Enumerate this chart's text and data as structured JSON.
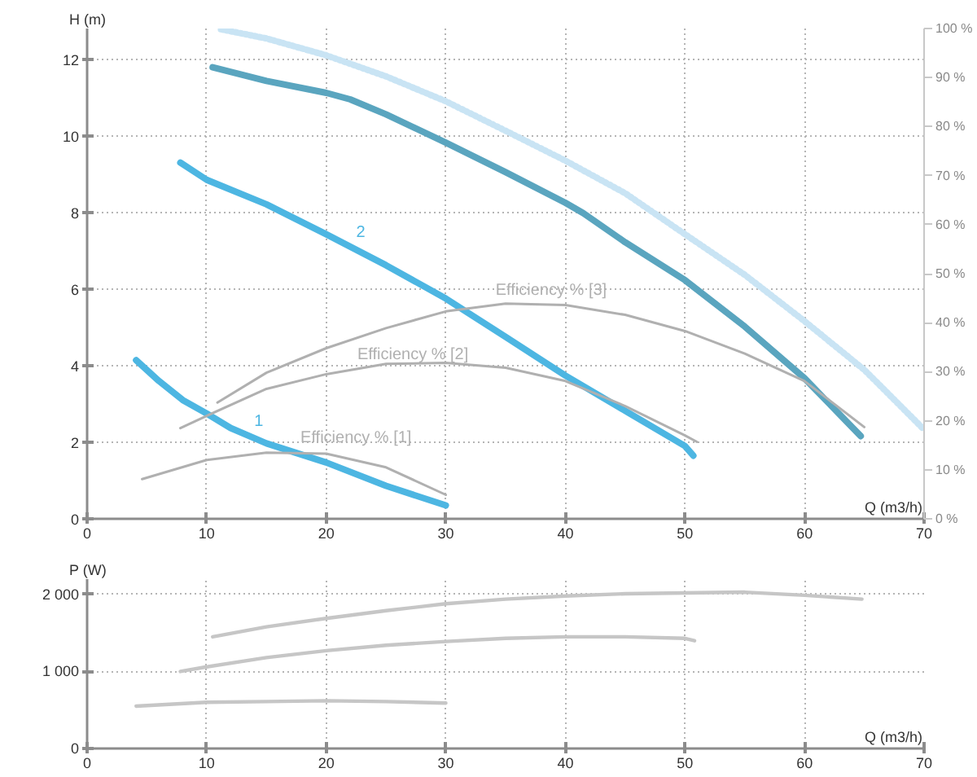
{
  "chart_data": [
    {
      "type": "line",
      "xlabel": "Q (m3/h)",
      "ylabel": "H (m)",
      "xlim": [
        0,
        70
      ],
      "xticks": [
        0,
        10,
        20,
        30,
        40,
        50,
        60,
        70
      ],
      "ylim": [
        0,
        12.8
      ],
      "yticks": [
        0,
        2,
        4,
        6,
        8,
        10,
        12
      ],
      "y2lim": [
        0,
        100
      ],
      "y2ticks": [
        {
          "value": 0,
          "label": "0 %"
        },
        {
          "value": 10,
          "label": "10 %"
        },
        {
          "value": 20,
          "label": "20 %"
        },
        {
          "value": 30,
          "label": "30 %"
        },
        {
          "value": 40,
          "label": "40 %"
        },
        {
          "value": 50,
          "label": "50 %"
        },
        {
          "value": 60,
          "label": "60 %"
        },
        {
          "value": 70,
          "label": "70 %"
        },
        {
          "value": 80,
          "label": "80 %"
        },
        {
          "value": 90,
          "label": "90 %"
        },
        {
          "value": 100,
          "label": "100 %"
        }
      ],
      "grid": true,
      "series": [
        {
          "name": "1",
          "color": "#4db6e2",
          "x": [
            4.1,
            6,
            8,
            10,
            12,
            15,
            20,
            25,
            30
          ],
          "values": [
            4.14,
            3.6,
            3.1,
            2.75,
            2.37,
            1.97,
            1.47,
            0.86,
            0.35
          ]
        },
        {
          "name": "2",
          "color": "#4db6e2",
          "x": [
            7.8,
            10,
            15,
            20,
            25,
            30,
            35,
            40,
            45,
            50,
            50.7
          ],
          "values": [
            9.3,
            8.85,
            8.21,
            7.43,
            6.62,
            5.75,
            4.75,
            3.74,
            2.82,
            1.9,
            1.65
          ]
        },
        {
          "color": "#5aa5bf",
          "x": [
            10.5,
            15,
            20,
            22,
            25,
            30,
            35,
            40,
            41.5,
            45,
            50,
            55,
            60,
            64.7
          ],
          "values": [
            11.79,
            11.43,
            11.12,
            10.95,
            10.56,
            9.82,
            9.05,
            8.25,
            7.98,
            7.22,
            6.23,
            5.02,
            3.67,
            2.16
          ]
        },
        {
          "color": "#c9e4f4",
          "line_style": "dotted",
          "x": [
            11.2,
            15,
            20,
            25,
            30,
            35,
            40,
            45,
            50,
            55,
            60,
            65,
            70
          ],
          "values": [
            12.78,
            12.54,
            12.1,
            11.55,
            10.9,
            10.13,
            9.35,
            8.5,
            7.43,
            6.37,
            5.16,
            3.89,
            2.33
          ]
        },
        {
          "name": "Efficiency % [1]",
          "color": "#b0b0b0",
          "axis": "y2",
          "x": [
            4.6,
            10,
            15,
            20,
            25,
            30
          ],
          "values": [
            8.1,
            12,
            13.5,
            13.3,
            10.5,
            4.9
          ]
        },
        {
          "name": "Efficiency % [2]",
          "color": "#b0b0b0",
          "axis": "y2",
          "x": [
            7.8,
            10,
            15,
            20,
            25,
            30,
            35,
            40,
            45,
            50,
            51
          ],
          "values": [
            18.5,
            21,
            26.5,
            29.5,
            31.6,
            31.8,
            30.8,
            28.1,
            23,
            17,
            15.7
          ]
        },
        {
          "name": "Efficiency % [3]",
          "color": "#b0b0b0",
          "axis": "y2",
          "x": [
            10.9,
            15,
            20,
            25,
            30,
            35,
            40,
            45,
            50,
            55,
            60,
            65
          ],
          "values": [
            23.7,
            29.8,
            34.8,
            38.9,
            42.3,
            43.9,
            43.6,
            41.6,
            38.3,
            33.7,
            28.1,
            18.7
          ]
        }
      ]
    },
    {
      "type": "line",
      "xlabel": "Q (m3/h)",
      "ylabel": "P (W)",
      "xlim": [
        0,
        70
      ],
      "xticks": [
        0,
        10,
        20,
        30,
        40,
        50,
        60,
        70
      ],
      "ylim": [
        0,
        2200
      ],
      "yticks": [
        0,
        {
          "value": 1000,
          "label": "1 000"
        },
        {
          "value": 2000,
          "label": "2 000"
        }
      ],
      "grid": true,
      "series": [
        {
          "color": "#c6c6c6",
          "x": [
            4.1,
            10,
            15,
            20,
            25,
            30
          ],
          "values": [
            550,
            600,
            610,
            620,
            610,
            590
          ]
        },
        {
          "color": "#c6c6c6",
          "x": [
            7.8,
            10,
            15,
            20,
            25,
            30,
            35,
            40,
            45,
            50,
            50.8
          ],
          "values": [
            1000,
            1060,
            1180,
            1270,
            1340,
            1390,
            1430,
            1450,
            1450,
            1430,
            1400
          ]
        },
        {
          "color": "#c6c6c6",
          "x": [
            10.5,
            15,
            20,
            25,
            30,
            35,
            40,
            45,
            50,
            55,
            60,
            64.8
          ],
          "values": [
            1450,
            1580,
            1690,
            1790,
            1880,
            1940,
            1980,
            2010,
            2020,
            2030,
            1990,
            1940
          ]
        }
      ]
    }
  ]
}
